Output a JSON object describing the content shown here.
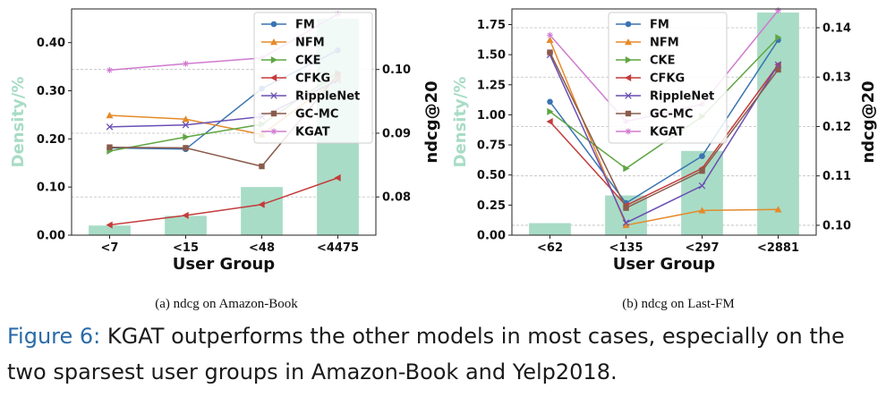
{
  "subcaptions": [
    "(a) ndcg on Amazon-Book",
    "(b) ndcg on Last-FM"
  ],
  "caption": {
    "label": "Figure 6:",
    "text": " KGAT outperforms the other models in most cases, especially on the two sparsest user groups in Amazon-Book and Yelp2018."
  },
  "colors": {
    "bar": "#a8dcc6",
    "FM": "#3a74b2",
    "NFM": "#e58a2a",
    "CKE": "#5fa543",
    "CFKG": "#c43b3b",
    "RippleNet": "#6a4fb3",
    "GC-MC": "#8a5b4c",
    "KGAT": "#d07ad0"
  },
  "chart_data": [
    {
      "type": "bar+line",
      "xlabel": "User Group",
      "ylabel_left": "Density/%",
      "ylabel_right": "ndcg@20",
      "categories": [
        "<7",
        "<15",
        "<48",
        "<4475"
      ],
      "left_ticks": [
        "0.00",
        "0.10",
        "0.20",
        "0.30",
        "0.40"
      ],
      "left_tick_values": [
        0,
        0.1,
        0.2,
        0.3,
        0.4
      ],
      "left_ylim": [
        0,
        0.47
      ],
      "right_ticks": [
        "0.08",
        "0.09",
        "0.10"
      ],
      "right_tick_values": [
        0.08,
        0.09,
        0.1
      ],
      "right_ylim": [
        0.074,
        0.1095
      ],
      "bars": [
        0.02,
        0.04,
        0.1,
        0.45
      ],
      "series": [
        {
          "name": "FM",
          "marker": "circle",
          "values": [
            0.0877,
            0.0875,
            0.097,
            0.103
          ]
        },
        {
          "name": "NFM",
          "marker": "triangle-up",
          "values": [
            0.0928,
            0.0922,
            0.0898,
            0.0986
          ]
        },
        {
          "name": "CKE",
          "marker": "triangle-right",
          "values": [
            0.0872,
            0.0894,
            0.0914,
            0.0995
          ]
        },
        {
          "name": "CFKG",
          "marker": "triangle-left",
          "values": [
            0.0756,
            0.0771,
            0.0788,
            0.083
          ]
        },
        {
          "name": "RippleNet",
          "marker": "x",
          "values": [
            0.091,
            0.0913,
            0.0926,
            0.0983
          ]
        },
        {
          "name": "GC-MC",
          "marker": "square",
          "values": [
            0.0878,
            0.0877,
            0.0848,
            0.0992
          ]
        },
        {
          "name": "KGAT",
          "marker": "star",
          "values": [
            0.0999,
            0.1009,
            0.1018,
            0.1087
          ]
        }
      ],
      "legend": "upper-right"
    },
    {
      "type": "bar+line",
      "xlabel": "User Group",
      "ylabel_left": "Density/%",
      "ylabel_right": "ndcg@20",
      "categories": [
        "<62",
        "<135",
        "<297",
        "<2881"
      ],
      "left_ticks": [
        "0.00",
        "0.25",
        "0.50",
        "0.75",
        "1.00",
        "1.25",
        "1.50",
        "1.75"
      ],
      "left_tick_values": [
        0,
        0.25,
        0.5,
        0.75,
        1.0,
        1.25,
        1.5,
        1.75
      ],
      "left_ylim": [
        0,
        1.88
      ],
      "right_ticks": [
        "0.10",
        "0.11",
        "0.12",
        "0.13",
        "0.14"
      ],
      "right_tick_values": [
        0.1,
        0.11,
        0.12,
        0.13,
        0.14
      ],
      "right_ylim": [
        0.098,
        0.1438
      ],
      "bars": [
        0.1,
        0.33,
        0.7,
        1.85
      ],
      "series": [
        {
          "name": "FM",
          "marker": "circle",
          "values": [
            0.125,
            0.1045,
            0.114,
            0.1375
          ]
        },
        {
          "name": "NFM",
          "marker": "triangle-up",
          "values": [
            0.1375,
            0.1,
            0.103,
            0.1032
          ]
        },
        {
          "name": "CKE",
          "marker": "triangle-right",
          "values": [
            0.123,
            0.1115,
            0.122,
            0.138
          ]
        },
        {
          "name": "CFKG",
          "marker": "triangle-left",
          "values": [
            0.121,
            0.104,
            0.1115,
            0.1325
          ]
        },
        {
          "name": "RippleNet",
          "marker": "x",
          "values": [
            0.1345,
            0.1005,
            0.108,
            0.1325
          ]
        },
        {
          "name": "GC-MC",
          "marker": "square",
          "values": [
            0.135,
            0.1035,
            0.111,
            0.1315
          ]
        },
        {
          "name": "KGAT",
          "marker": "star",
          "values": [
            0.1385,
            0.121,
            0.1245,
            0.1435
          ]
        }
      ],
      "legend": "upper-left"
    }
  ]
}
